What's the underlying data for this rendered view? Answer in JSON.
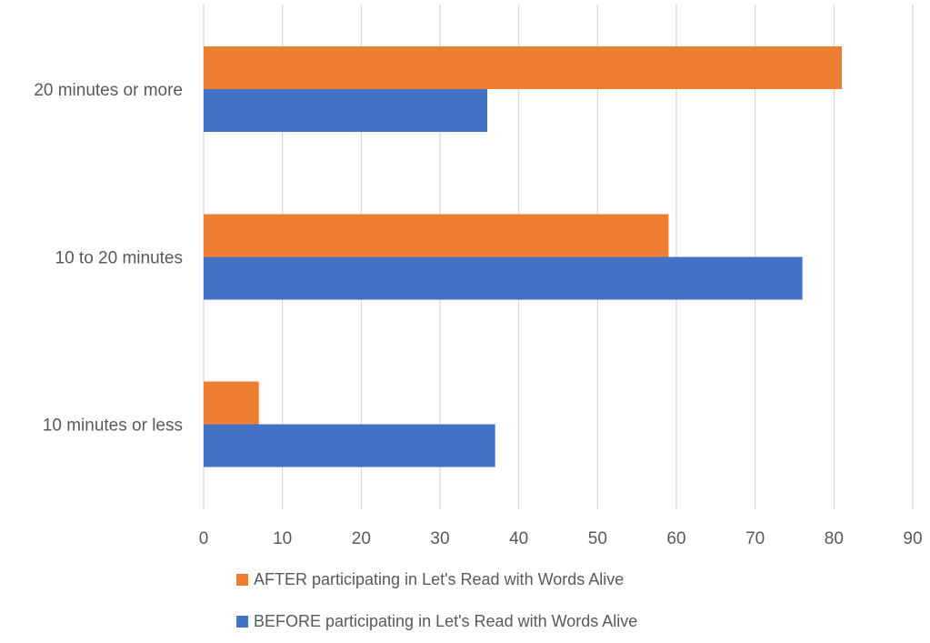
{
  "chart_data": {
    "type": "bar",
    "orientation": "horizontal",
    "title": "",
    "xlabel": "",
    "ylabel": "",
    "categories": [
      "10 minutes or less",
      "10 to 20 minutes",
      "20 minutes or more"
    ],
    "series": [
      {
        "name": "BEFORE participating in Let's Read with Words Alive",
        "color": "#4472C4",
        "values": [
          37,
          76,
          36
        ]
      },
      {
        "name": "AFTER participating in Let's Read with Words Alive",
        "color": "#ED7D31",
        "values": [
          7,
          59,
          81
        ]
      }
    ],
    "xlim": [
      0,
      90
    ],
    "ticks": [
      0,
      10,
      20,
      30,
      40,
      50,
      60,
      70,
      80,
      90
    ],
    "grid": true,
    "legend_position": "bottom"
  }
}
